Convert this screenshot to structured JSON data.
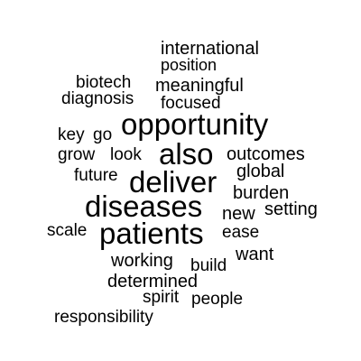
{
  "word_cloud": {
    "words": [
      "international",
      "position",
      "biotech",
      "meaningful",
      "diagnosis",
      "focused",
      "key",
      "go",
      "opportunity",
      "grow",
      "look",
      "also",
      "outcomes",
      "future",
      "deliver",
      "global",
      "burden",
      "diseases",
      "setting",
      "new",
      "scale",
      "patients",
      "ease",
      "want",
      "working",
      "build",
      "determined",
      "spirit",
      "people",
      "responsibility"
    ]
  }
}
